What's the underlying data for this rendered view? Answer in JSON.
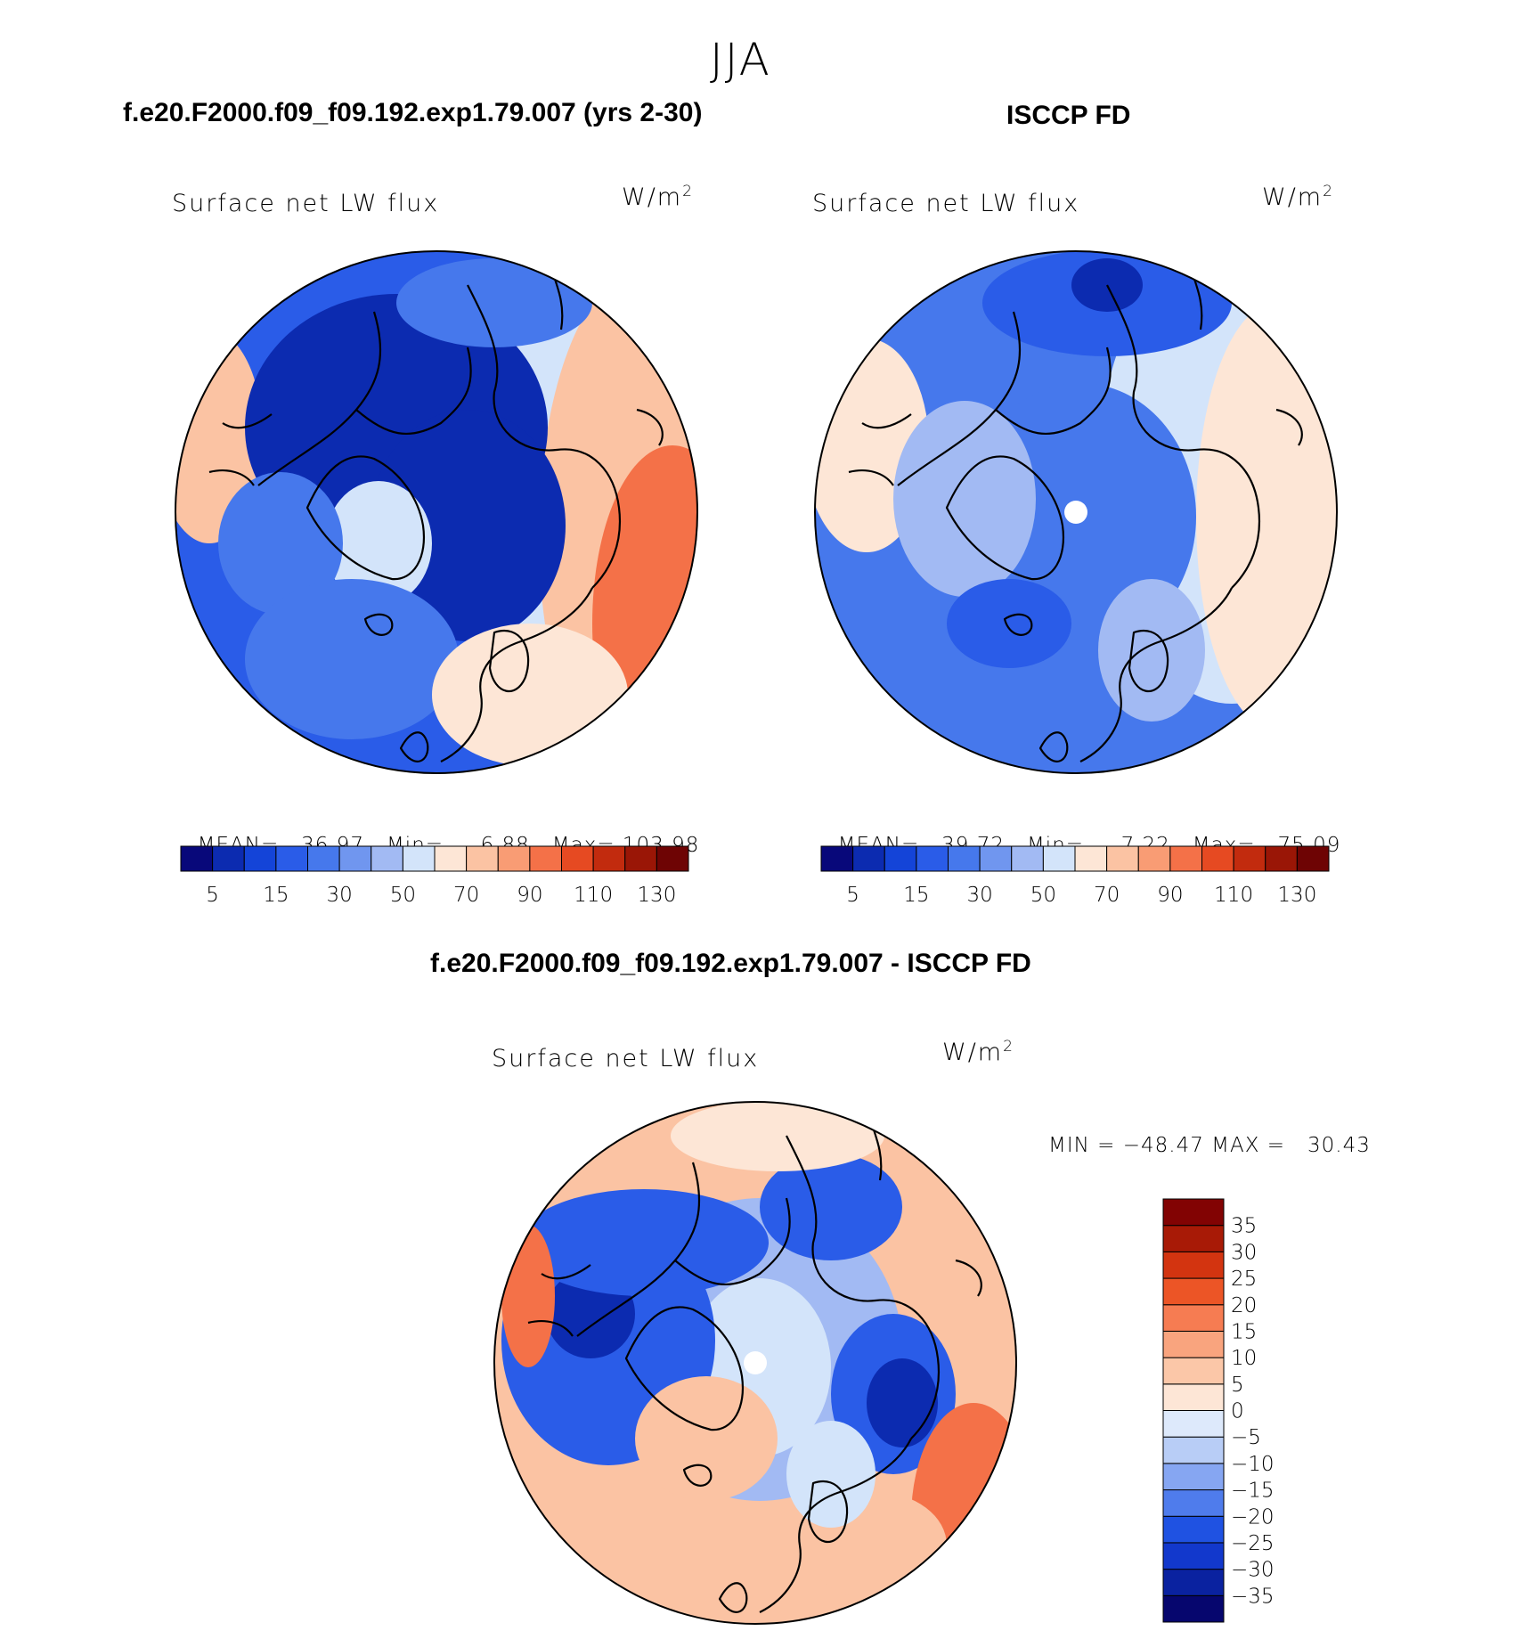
{
  "page": {
    "season": "JJA",
    "left_title": "f.e20.F2000.f09_f09.192.exp1.79.007 (yrs 2-30)",
    "right_title": "ISCCP FD",
    "diff_title": "f.e20.F2000.f09_f09.192.exp1.79.007 - ISCCP FD"
  },
  "panels": [
    {
      "id": "model",
      "variable": "Surface net LW flux",
      "units_base": "W/m",
      "units_exp": "2",
      "stats": {
        "mean_label": "MEAN=",
        "mean": "36.97",
        "min_label": "Min=",
        "min": "6.88",
        "max_label": "Max=",
        "max": "103.98"
      }
    },
    {
      "id": "obs",
      "variable": "Surface net LW flux",
      "units_base": "W/m",
      "units_exp": "2",
      "stats": {
        "mean_label": "MEAN=",
        "mean": "39.72",
        "min_label": "Min=",
        "min": "7.22",
        "max_label": "Max=",
        "max": "75.09"
      }
    },
    {
      "id": "diff",
      "variable": "Surface net LW flux",
      "units_base": "W/m",
      "units_exp": "2",
      "stats_text": "MIN = −48.47 MAX =   30.43"
    }
  ],
  "colorbar_abs": {
    "colors": [
      "#08087a",
      "#0c2bb0",
      "#1444d8",
      "#2a5ce8",
      "#4678ec",
      "#7096ef",
      "#a2baf3",
      "#d3e4fa",
      "#fde6d6",
      "#fbc3a3",
      "#f99c74",
      "#f47148",
      "#e64a22",
      "#c22b0e",
      "#9a1606",
      "#6e0404"
    ],
    "ticks": [
      "5",
      "15",
      "30",
      "50",
      "70",
      "90",
      "110",
      "130"
    ]
  },
  "colorbar_diff": {
    "colors": [
      "#06066e",
      "#0a22a0",
      "#1238cc",
      "#1f52e2",
      "#4f7cec",
      "#86a6f2",
      "#b8cdf6",
      "#dde9fb",
      "#fde6d6",
      "#fbc7a8",
      "#f9a47e",
      "#f67c52",
      "#ec5526",
      "#d33410",
      "#a81a06",
      "#820303"
    ],
    "ticks": [
      "−35",
      "−30",
      "−25",
      "−20",
      "−15",
      "−10",
      "−5",
      "0",
      "5",
      "10",
      "15",
      "20",
      "25",
      "30",
      "35"
    ]
  },
  "map_colors": {
    "deep_blue": "#0c2bb0",
    "blue": "#2a5ce8",
    "mid_blue": "#4678ec",
    "light_blue": "#a2baf3",
    "pale_blue": "#d3e4fa",
    "pale_red": "#fde6d6",
    "light_red": "#fbc3a3",
    "red": "#f47148",
    "dark_red": "#e64a22",
    "coast": "#000000"
  }
}
